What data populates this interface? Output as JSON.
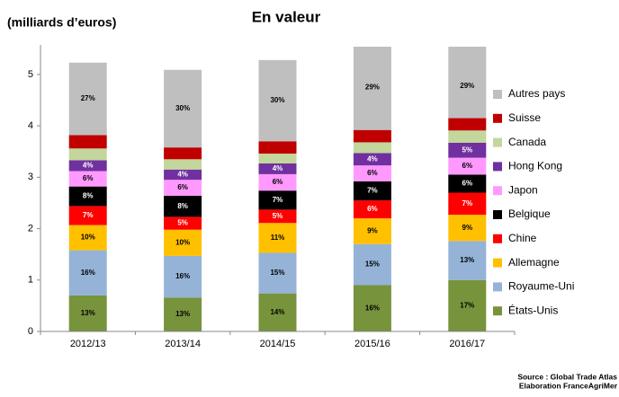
{
  "chart_data": {
    "type": "stacked_bar",
    "title": "En valeur",
    "y_label": "(milliards d’euros)",
    "source": [
      "Source : Global Trade Atlas",
      "Elaboration FranceAgriMer"
    ],
    "categories": [
      "2012/13",
      "2013/14",
      "2014/15",
      "2015/16",
      "2016/17"
    ],
    "ylim": [
      0,
      5.54
    ],
    "yticks": [
      0,
      1,
      2,
      3,
      4,
      5
    ],
    "grid": false,
    "legend": "right",
    "series": [
      {
        "name": "États-Unis",
        "color": "#77933c",
        "label_color": "#000000",
        "values": [
          0.7,
          0.66,
          0.74,
          0.9,
          1.0
        ],
        "value_labels": [
          "13%",
          "13%",
          "14%",
          "16%",
          "17%"
        ]
      },
      {
        "name": "Royaume-Uni",
        "color": "#95b3d7",
        "label_color": "#000000",
        "values": [
          0.88,
          0.81,
          0.79,
          0.8,
          0.76
        ],
        "value_labels": [
          "16%",
          "16%",
          "15%",
          "15%",
          "13%"
        ]
      },
      {
        "name": "Allemagne",
        "color": "#ffc000",
        "label_color": "#000000",
        "values": [
          0.49,
          0.51,
          0.58,
          0.5,
          0.51
        ],
        "value_labels": [
          "10%",
          "10%",
          "11%",
          "9%",
          "9%"
        ]
      },
      {
        "name": "Chine",
        "color": "#ff0000",
        "label_color": "#ffffff",
        "values": [
          0.37,
          0.25,
          0.26,
          0.35,
          0.43
        ],
        "value_labels": [
          "7%",
          "5%",
          "5%",
          "6%",
          "7%"
        ]
      },
      {
        "name": "Belgique",
        "color": "#000000",
        "label_color": "#ffffff",
        "values": [
          0.38,
          0.41,
          0.37,
          0.37,
          0.35
        ],
        "value_labels": [
          "8%",
          "8%",
          "7%",
          "7%",
          "6%"
        ]
      },
      {
        "name": "Japon",
        "color": "#ff99ff",
        "label_color": "#000000",
        "values": [
          0.3,
          0.31,
          0.32,
          0.31,
          0.33
        ],
        "value_labels": [
          "6%",
          "6%",
          "6%",
          "6%",
          "6%"
        ]
      },
      {
        "name": "Hong Kong",
        "color": "#7030a0",
        "label_color": "#ffffff",
        "values": [
          0.21,
          0.2,
          0.21,
          0.24,
          0.29
        ],
        "value_labels": [
          "4%",
          "4%",
          "4%",
          "4%",
          "5%"
        ]
      },
      {
        "name": "Canada",
        "color": "#c3d69b",
        "values": [
          0.23,
          0.2,
          0.19,
          0.21,
          0.24
        ]
      },
      {
        "name": "Suisse",
        "color": "#c00000",
        "values": [
          0.26,
          0.23,
          0.24,
          0.24,
          0.24
        ]
      },
      {
        "name": "Autres pays",
        "color": "#bfbfbf",
        "label_color": "#000000",
        "values": [
          1.41,
          1.51,
          1.58,
          1.65,
          1.7
        ],
        "value_labels": [
          "27%",
          "30%",
          "30%",
          "29%",
          "29%"
        ]
      }
    ]
  }
}
